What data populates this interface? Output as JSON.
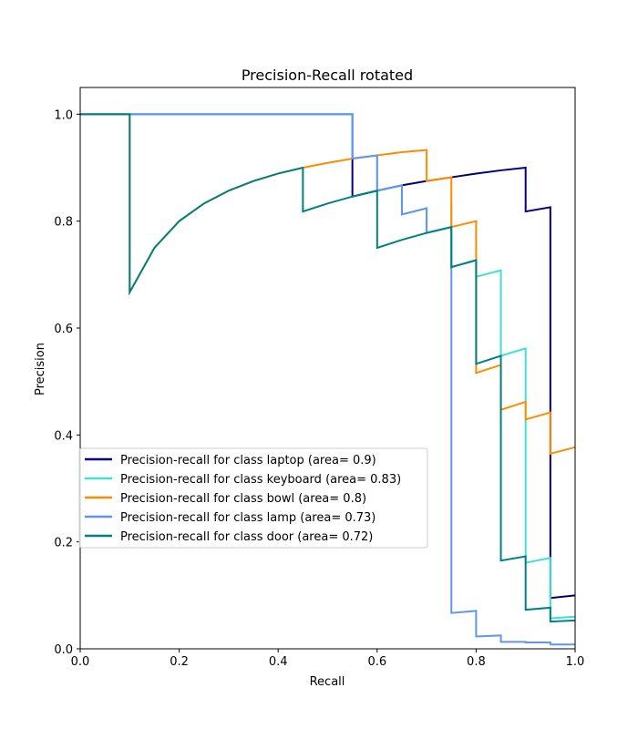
{
  "chart_data": {
    "type": "line",
    "title": "Precision-Recall rotated",
    "xlabel": "Recall",
    "ylabel": "Precision",
    "xlim": [
      0.0,
      1.0
    ],
    "ylim": [
      0.0,
      1.05
    ],
    "xticks": [
      "0.0",
      "0.2",
      "0.4",
      "0.6",
      "0.8",
      "1.0"
    ],
    "yticks": [
      "0.0",
      "0.2",
      "0.4",
      "0.6",
      "0.8",
      "1.0"
    ],
    "grid": false,
    "legend_position": "lower-left",
    "series": [
      {
        "name": "Precision-recall for class laptop (area= 0.9)",
        "color": "#000080",
        "points": [
          [
            0.0,
            1.0
          ],
          [
            0.55,
            1.0
          ],
          [
            0.55,
            0.846
          ],
          [
            0.6,
            0.857
          ],
          [
            0.65,
            0.867
          ],
          [
            0.7,
            0.875
          ],
          [
            0.75,
            0.882
          ],
          [
            0.8,
            0.889
          ],
          [
            0.85,
            0.895
          ],
          [
            0.9,
            0.9
          ],
          [
            0.9,
            0.818
          ],
          [
            0.95,
            0.826
          ],
          [
            0.95,
            0.095
          ],
          [
            1.0,
            0.1
          ]
        ]
      },
      {
        "name": "Precision-recall for class keyboard (area= 0.83)",
        "color": "#40e0d0",
        "points": [
          [
            0.0,
            1.0
          ],
          [
            0.55,
            1.0
          ],
          [
            0.55,
            0.917
          ],
          [
            0.6,
            0.923
          ],
          [
            0.6,
            0.857
          ],
          [
            0.65,
            0.867
          ],
          [
            0.65,
            0.8125
          ],
          [
            0.7,
            0.824
          ],
          [
            0.7,
            0.778
          ],
          [
            0.75,
            0.789
          ],
          [
            0.75,
            0.833
          ],
          [
            0.75,
            0.714
          ],
          [
            0.8,
            0.727
          ],
          [
            0.8,
            0.696
          ],
          [
            0.85,
            0.708
          ],
          [
            0.85,
            0.548
          ],
          [
            0.9,
            0.562
          ],
          [
            0.9,
            0.161
          ],
          [
            0.95,
            0.17
          ],
          [
            0.95,
            0.057
          ],
          [
            1.0,
            0.06
          ]
        ]
      },
      {
        "name": "Precision-recall for class bowl (area= 0.8)",
        "color": "#ff8c00",
        "points": [
          [
            0.0,
            1.0
          ],
          [
            0.1,
            1.0
          ],
          [
            0.1,
            0.667
          ],
          [
            0.15,
            0.75
          ],
          [
            0.2,
            0.8
          ],
          [
            0.25,
            0.833
          ],
          [
            0.3,
            0.857
          ],
          [
            0.35,
            0.875
          ],
          [
            0.4,
            0.889
          ],
          [
            0.45,
            0.9
          ],
          [
            0.5,
            0.909
          ],
          [
            0.55,
            0.917
          ],
          [
            0.6,
            0.923
          ],
          [
            0.65,
            0.929
          ],
          [
            0.7,
            0.933
          ],
          [
            0.7,
            0.875
          ],
          [
            0.75,
            0.882
          ],
          [
            0.75,
            0.789
          ],
          [
            0.8,
            0.8
          ],
          [
            0.8,
            0.516
          ],
          [
            0.85,
            0.531
          ],
          [
            0.85,
            0.447
          ],
          [
            0.9,
            0.462
          ],
          [
            0.9,
            0.429
          ],
          [
            0.95,
            0.442
          ],
          [
            0.95,
            0.365
          ],
          [
            1.0,
            0.377
          ]
        ]
      },
      {
        "name": "Precision-recall for class lamp (area= 0.73)",
        "color": "#6495ed",
        "points": [
          [
            0.0,
            1.0
          ],
          [
            0.55,
            1.0
          ],
          [
            0.55,
            0.917
          ],
          [
            0.6,
            0.923
          ],
          [
            0.6,
            0.857
          ],
          [
            0.65,
            0.867
          ],
          [
            0.65,
            0.8125
          ],
          [
            0.7,
            0.824
          ],
          [
            0.7,
            0.778
          ],
          [
            0.75,
            0.789
          ],
          [
            0.75,
            0.067
          ],
          [
            0.8,
            0.071
          ],
          [
            0.8,
            0.023
          ],
          [
            0.85,
            0.025
          ],
          [
            0.85,
            0.013
          ],
          [
            0.9,
            0.013
          ],
          [
            0.9,
            0.012
          ],
          [
            0.95,
            0.012
          ],
          [
            0.95,
            0.008
          ],
          [
            1.0,
            0.008
          ]
        ]
      },
      {
        "name": "Precision-recall for class door (area= 0.72)",
        "color": "#008080",
        "points": [
          [
            0.0,
            1.0
          ],
          [
            0.1,
            1.0
          ],
          [
            0.1,
            0.667
          ],
          [
            0.15,
            0.75
          ],
          [
            0.2,
            0.8
          ],
          [
            0.25,
            0.833
          ],
          [
            0.3,
            0.857
          ],
          [
            0.35,
            0.875
          ],
          [
            0.4,
            0.889
          ],
          [
            0.45,
            0.9
          ],
          [
            0.45,
            0.818
          ],
          [
            0.5,
            0.833
          ],
          [
            0.55,
            0.846
          ],
          [
            0.6,
            0.857
          ],
          [
            0.6,
            0.75
          ],
          [
            0.65,
            0.765
          ],
          [
            0.7,
            0.778
          ],
          [
            0.75,
            0.789
          ],
          [
            0.75,
            0.714
          ],
          [
            0.8,
            0.727
          ],
          [
            0.8,
            0.533
          ],
          [
            0.85,
            0.548
          ],
          [
            0.85,
            0.165
          ],
          [
            0.9,
            0.173
          ],
          [
            0.9,
            0.073
          ],
          [
            0.95,
            0.077
          ],
          [
            0.95,
            0.051
          ],
          [
            1.0,
            0.053
          ]
        ]
      }
    ]
  }
}
